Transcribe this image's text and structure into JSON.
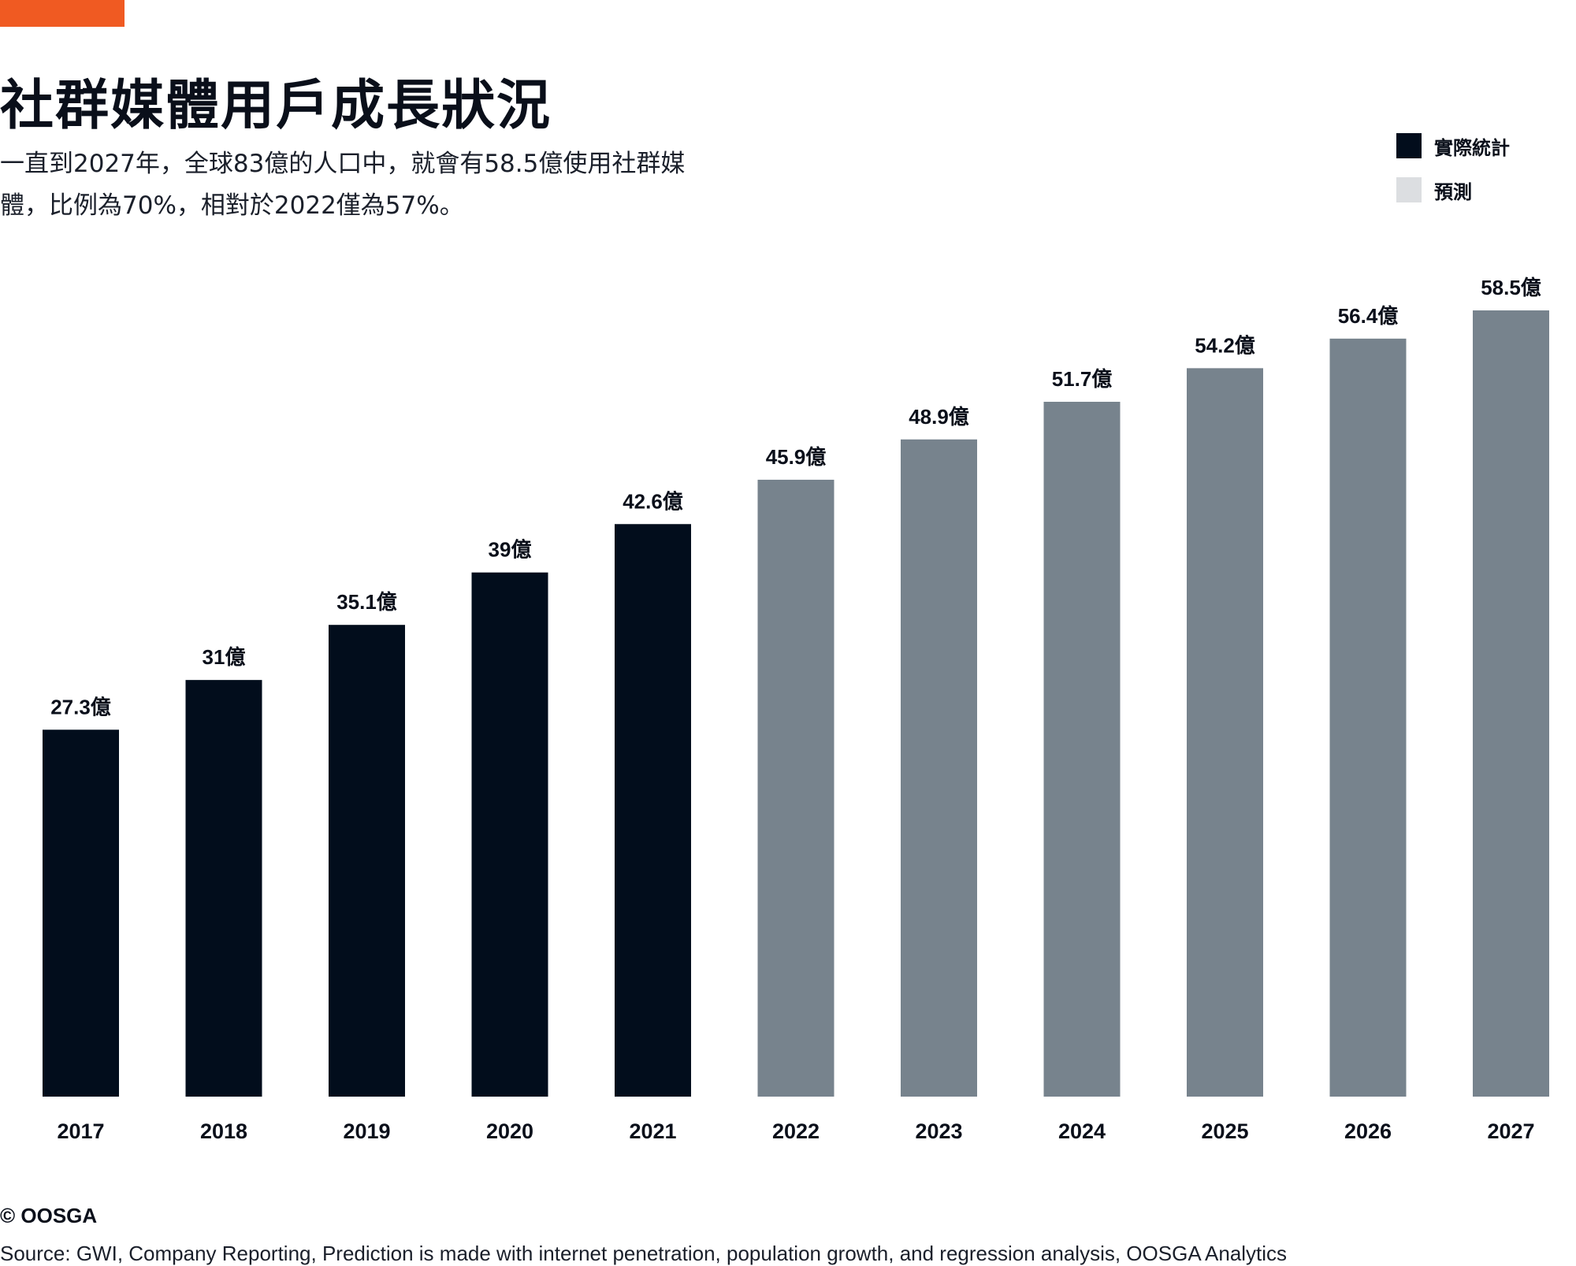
{
  "header": {
    "title": "社群媒體用戶成長狀況",
    "subtitle_line1": "一直到2027年，全球83億的人口中，就會有58.5億使用社群媒",
    "subtitle_line2": "體，比例為70%，相對於2022僅為57%。"
  },
  "legend": {
    "placement": "top-right",
    "items": [
      {
        "label": "實際統計",
        "color": "#020d1c"
      },
      {
        "label": "預測",
        "color": "#dcdee1"
      }
    ]
  },
  "colors": {
    "accent": "#f05a22",
    "actual_bar": "#020d1c",
    "forecast_bar": "#77838d"
  },
  "chart_data": {
    "type": "bar",
    "categories": [
      "2017",
      "2018",
      "2019",
      "2020",
      "2021",
      "2022",
      "2023",
      "2024",
      "2025",
      "2026",
      "2027"
    ],
    "values": [
      27.3,
      31,
      35.1,
      39,
      42.6,
      45.9,
      48.9,
      51.7,
      54.2,
      56.4,
      58.5
    ],
    "value_labels": [
      "27.3億",
      "31億",
      "35.1億",
      "39億",
      "42.6億",
      "45.9億",
      "48.9億",
      "51.7億",
      "54.2億",
      "56.4億",
      "58.5億"
    ],
    "kinds": [
      "actual",
      "actual",
      "actual",
      "actual",
      "actual",
      "forecast",
      "forecast",
      "forecast",
      "forecast",
      "forecast",
      "forecast"
    ],
    "ylim": [
      0,
      58.5
    ],
    "grid": false
  },
  "footer": {
    "copyright": "© OOSGA",
    "source": "Source: GWI, Company Reporting, Prediction is made with internet penetration, population growth, and regression analysis, OOSGA Analytics"
  }
}
